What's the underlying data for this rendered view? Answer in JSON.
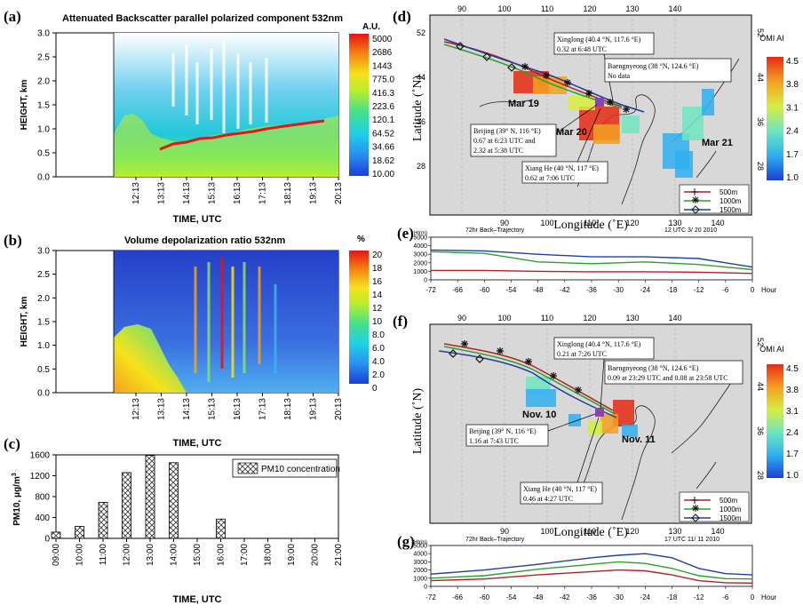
{
  "panels": {
    "a": {
      "letter": "(a)",
      "title": "Attenuated Backscatter parallel polarized component 532nm",
      "ylabel": "HEIGHT, km",
      "xlabel": "TIME, UTC",
      "ytick_labels": [
        "0.0",
        "0.5",
        "1.0",
        "1.5",
        "2.0",
        "2.5",
        "3.0"
      ],
      "xtick_labels": [
        "12:13",
        "13:13",
        "14:13",
        "15:13",
        "16:13",
        "17:13",
        "18:13",
        "19:13",
        "20:13"
      ],
      "colorbar": {
        "unit": "A.U.",
        "labels": [
          "5000",
          "2686",
          "1443",
          "775.0",
          "416.3",
          "223.6",
          "120.1",
          "64.52",
          "34.66",
          "18.62",
          "10.00"
        ]
      }
    },
    "b": {
      "letter": "(b)",
      "title": "Volume depolarization ratio 532nm",
      "ylabel": "HEIGHT, km",
      "xlabel": "TIME, UTC",
      "ytick_labels": [
        "0.0",
        "0.5",
        "1.0",
        "1.5",
        "2.0",
        "2.5",
        "3.0"
      ],
      "xtick_labels": [
        "12:13",
        "13:13",
        "14:13",
        "15:13",
        "16:13",
        "17:13",
        "18:13",
        "19:13",
        "20:13"
      ],
      "colorbar": {
        "unit": "%",
        "labels": [
          "20",
          "18",
          "16",
          "14",
          "12",
          "10",
          "8.0",
          "6.0",
          "4.0",
          "2.0",
          "0"
        ]
      }
    },
    "c": {
      "letter": "(c)",
      "xlabel": "TIME, UTC",
      "ylabel": "PM10, μg/m",
      "ylabel_sup": "3",
      "legend": "PM10 concentration"
    },
    "d": {
      "letter": "(d)",
      "xlabel": "Longitude (˚E)",
      "ylabel": "Latitude (˚N)",
      "lon_labels": [
        "90",
        "100",
        "110",
        "120",
        "130",
        "140"
      ],
      "lat_labels_left": [
        "52",
        "44",
        "36",
        "28"
      ],
      "lat_labels_right": [
        "52",
        "44",
        "36",
        "28"
      ],
      "colorbar_title": "OMI AI",
      "colorbar_labels": [
        "4.5",
        "3.8",
        "3.1",
        "2.4",
        "1.7",
        "1.0"
      ],
      "annotations": {
        "xinglong": [
          "Xinglong (40.4 °N, 117.6 °E)",
          "0.32 at 6:48 UTC"
        ],
        "baengnyeong": [
          "Baengnyeong (38 °N, 124.6 °E)",
          "No data"
        ],
        "beijing": [
          "Beijing (39° N, 116 °E)",
          "0.67 at 6:23 UTC and",
          "2.32 at 5:38 UTC"
        ],
        "xianghe": [
          "Xiang He (40 °N, 117 °E)",
          "0.62 at 7:06 UTC"
        ]
      },
      "day_labels": [
        "Mar 19",
        "Mar 20",
        "Mar 21"
      ],
      "legend": [
        "500m",
        "1000m",
        "1500m"
      ]
    },
    "e": {
      "letter": "(e)",
      "unit_label": "Ht(m)",
      "header_left": "72hr Back–Trajectory",
      "header_right": "12 UTC    3/ 20  2010",
      "ytick_labels": [
        "5000",
        "4000",
        "3000",
        "2000",
        "1000",
        "0"
      ],
      "xtick_labels": [
        "-72",
        "-66",
        "-60",
        "-54",
        "-48",
        "-42",
        "-36",
        "-30",
        "-24",
        "-18",
        "-12",
        "-6",
        "0"
      ],
      "x_unit": "Hour"
    },
    "f": {
      "letter": "(f)",
      "xlabel": "Longitude (˚E)",
      "ylabel": "Latitude (˚N)",
      "lon_labels": [
        "90",
        "100",
        "110",
        "120",
        "130",
        "140"
      ],
      "lat_labels_right": [
        "52",
        "44",
        "36",
        "28"
      ],
      "colorbar_title": "OMI AI",
      "colorbar_labels": [
        "4.5",
        "3.8",
        "3.1",
        "2.4",
        "1.7",
        "1.0"
      ],
      "annotations": {
        "xinglong": [
          "Xinglong (40.4 °N, 117.6 °E)",
          "0.21 at 7:26 UTC"
        ],
        "baengnyeong": [
          "Baengnyeong (38 °N, 124.6 °E)",
          "0.09 at 23:29 UTC and 0.08 at 23:58 UTC"
        ],
        "beijing": [
          "Beijing (39° N, 116 °E)",
          "1.16 at 7:43 UTC"
        ],
        "xianghe": [
          "Xiang He (40 °N, 117 °E)",
          "0.46 at 4:27 UTC"
        ]
      },
      "day_labels": [
        "Nov. 10",
        "Nov. 11"
      ],
      "legend": [
        "500m",
        "1000m",
        "1500m"
      ]
    },
    "g": {
      "letter": "(g)",
      "unit_label": "Ht(m)",
      "header_left": "72hr Back–Trajectory",
      "header_right": "17 UTC   11/ 11  2010",
      "ytick_labels": [
        "5000",
        "4000",
        "3000",
        "2000",
        "1000",
        "0"
      ],
      "xtick_labels": [
        "-72",
        "-66",
        "-60",
        "-54",
        "-48",
        "-42",
        "-36",
        "-30",
        "-24",
        "-18",
        "-12",
        "-6",
        "0"
      ],
      "x_unit": "Hour"
    }
  },
  "chart_data": [
    {
      "id": "a",
      "type": "heatmap",
      "title": "Attenuated Backscatter parallel polarized component 532nm",
      "xlabel": "TIME, UTC",
      "ylabel": "HEIGHT, km",
      "ylim": [
        0,
        3
      ],
      "colorbar_unit": "A.U.",
      "colorbar_scale": "log",
      "colorbar_range": [
        10,
        5000
      ]
    },
    {
      "id": "b",
      "type": "heatmap",
      "title": "Volume depolarization ratio 532nm",
      "xlabel": "TIME, UTC",
      "ylabel": "HEIGHT, km",
      "ylim": [
        0,
        3
      ],
      "colorbar_unit": "%",
      "colorbar_range": [
        0,
        20
      ]
    },
    {
      "id": "c",
      "type": "bar",
      "categories": [
        "09:00",
        "10:00",
        "11:00",
        "12:00",
        "13:00",
        "14:00",
        "15:00",
        "16:00",
        "17:00",
        "18:00",
        "19:00",
        "20:00",
        "21:00"
      ],
      "values": [
        120,
        230,
        690,
        1260,
        1590,
        1450,
        null,
        370,
        null,
        null,
        null,
        null,
        null
      ],
      "ylim": [
        0,
        1600
      ],
      "yticks": [
        0,
        400,
        800,
        1200,
        1600
      ],
      "legend": [
        "PM10 concentration"
      ],
      "legend_position": "top-right"
    },
    {
      "id": "e",
      "type": "line",
      "xlim": [
        -72,
        0
      ],
      "ylim": [
        0,
        5000
      ],
      "series": [
        {
          "name": "500m",
          "color": "#b22222",
          "x": [
            -72,
            -60,
            -48,
            -36,
            -24,
            -12,
            -6,
            0
          ],
          "y": [
            1100,
            1100,
            1000,
            950,
            950,
            900,
            820,
            750
          ]
        },
        {
          "name": "1000m",
          "color": "#2ca02c",
          "x": [
            -72,
            -60,
            -48,
            -36,
            -24,
            -12,
            -6,
            0
          ],
          "y": [
            3300,
            3100,
            2100,
            1900,
            2100,
            1800,
            1500,
            1200
          ]
        },
        {
          "name": "1500m",
          "color": "#1f3fa0",
          "x": [
            -72,
            -60,
            -48,
            -36,
            -24,
            -12,
            -6,
            0
          ],
          "y": [
            3500,
            3400,
            3000,
            2700,
            2700,
            2500,
            2000,
            1500
          ]
        }
      ]
    },
    {
      "id": "g",
      "type": "line",
      "xlim": [
        -72,
        0
      ],
      "ylim": [
        0,
        5000
      ],
      "series": [
        {
          "name": "500m",
          "color": "#b22222",
          "x": [
            -72,
            -60,
            -48,
            -36,
            -30,
            -24,
            -18,
            -12,
            -6,
            0
          ],
          "y": [
            700,
            900,
            1400,
            1800,
            2000,
            1900,
            1400,
            700,
            450,
            400
          ]
        },
        {
          "name": "1000m",
          "color": "#2ca02c",
          "x": [
            -72,
            -60,
            -48,
            -36,
            -30,
            -24,
            -18,
            -12,
            -6,
            0
          ],
          "y": [
            1000,
            1300,
            2100,
            2700,
            3000,
            2800,
            2200,
            1300,
            950,
            900
          ]
        },
        {
          "name": "1500m",
          "color": "#1f3fa0",
          "x": [
            -72,
            -60,
            -48,
            -36,
            -30,
            -24,
            -18,
            -12,
            -6,
            0
          ],
          "y": [
            1500,
            2000,
            2700,
            3500,
            3800,
            4000,
            3500,
            2200,
            1550,
            1400
          ]
        }
      ]
    }
  ],
  "colors": {
    "traj_500": "#b22222",
    "traj_1000": "#2ca02c",
    "traj_1500": "#1f3fa0",
    "map_bg": "#d8d8d8",
    "lidar_bg": "#1e6fd9"
  }
}
